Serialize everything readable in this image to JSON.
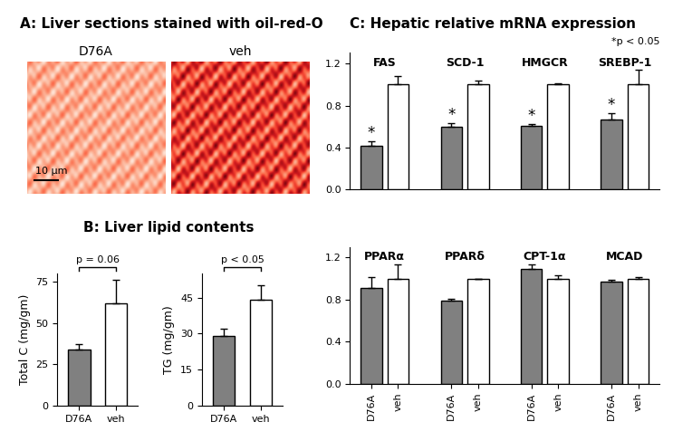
{
  "chart_data": [
    {
      "type": "image",
      "title": "A: Liver sections stained with oil-red-O",
      "categories": [
        "D76A",
        "veh"
      ],
      "annotations": [
        "10 μm"
      ]
    },
    {
      "type": "bar",
      "title": "B: Liver lipid contents",
      "ylabel": "Total C (mg/gm)",
      "categories": [
        "D76A",
        "veh"
      ],
      "values": [
        34,
        62
      ],
      "errors": [
        3,
        14
      ],
      "colors": [
        "#808080",
        "#ffffff"
      ],
      "ylim": [
        0,
        80
      ],
      "yticks": [
        0,
        25,
        50,
        75
      ],
      "annotations": [
        "p = 0.06"
      ]
    },
    {
      "type": "bar",
      "ylabel": "TG (mg/gm)",
      "categories": [
        "D76A",
        "veh"
      ],
      "values": [
        29,
        44
      ],
      "errors": [
        3,
        6
      ],
      "colors": [
        "#808080",
        "#ffffff"
      ],
      "ylim": [
        0,
        55
      ],
      "yticks": [
        0,
        15,
        30,
        45
      ],
      "annotations": [
        "p < 0.05"
      ]
    },
    {
      "type": "bar",
      "title": "C: Hepatic relative mRNA expression",
      "annotations": [
        "*p < 0.05"
      ],
      "groups": [
        "FAS",
        "SCD-1",
        "HMGCR",
        "SREBP-1"
      ],
      "tick_labels": "y",
      "series": [
        {
          "color": "#808080",
          "values": [
            0.42,
            0.6,
            0.61,
            0.67
          ],
          "errors": [
            0.04,
            0.03,
            0.01,
            0.06
          ],
          "significance": [
            "*",
            "*",
            "*",
            "*"
          ]
        },
        {
          "color": "#ffffff",
          "values": [
            1.0,
            1.0,
            1.0,
            1.0
          ],
          "errors": [
            0.08,
            0.04,
            0.01,
            0.14
          ]
        }
      ],
      "ylim": [
        0,
        1.3
      ],
      "yticks": [
        0.0,
        0.4,
        0.8,
        1.2
      ]
    },
    {
      "type": "bar",
      "groups": [
        "PPARα",
        "PPARδ",
        "CPT-1α",
        "MCAD"
      ],
      "series": [
        {
          "name": "D76A",
          "color": "#808080",
          "values": [
            0.91,
            0.79,
            1.09,
            0.97
          ],
          "errors": [
            0.1,
            0.02,
            0.04,
            0.02
          ]
        },
        {
          "name": "veh",
          "color": "#ffffff",
          "values": [
            1.0,
            1.0,
            1.0,
            1.0
          ],
          "errors": [
            0.13,
            0.0,
            0.03,
            0.01
          ]
        }
      ],
      "ylim": [
        0,
        1.3
      ],
      "yticks": [
        0.0,
        0.4,
        0.8,
        1.2
      ]
    }
  ]
}
